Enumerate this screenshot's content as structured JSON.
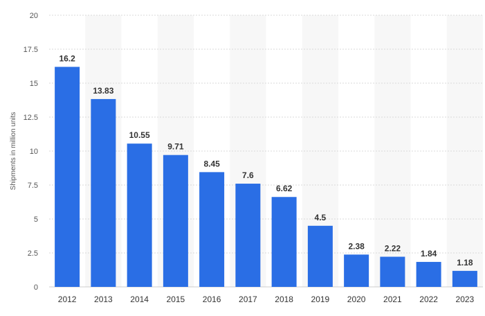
{
  "chart_data": {
    "type": "bar",
    "categories": [
      "2012",
      "2013",
      "2014",
      "2015",
      "2016",
      "2017",
      "2018",
      "2019",
      "2020",
      "2021",
      "2022",
      "2023"
    ],
    "values": [
      16.2,
      13.83,
      10.55,
      9.71,
      8.45,
      7.6,
      6.62,
      4.5,
      2.38,
      2.22,
      1.84,
      1.18
    ],
    "value_labels": [
      "16.2",
      "13.83",
      "10.55",
      "9.71",
      "8.45",
      "7.6",
      "6.62",
      "4.5",
      "2.38",
      "2.22",
      "1.84",
      "1.18"
    ],
    "title": "",
    "xlabel": "",
    "ylabel": "Shipments in million units",
    "ylim": [
      0,
      20
    ],
    "y_ticks": [
      "0",
      "2.5",
      "5",
      "7.5",
      "10",
      "12.5",
      "15",
      "17.5",
      "20"
    ],
    "grid": "horizontal dotted",
    "bar_color": "#2a6ee5",
    "band_color": "#f7f7f7"
  }
}
